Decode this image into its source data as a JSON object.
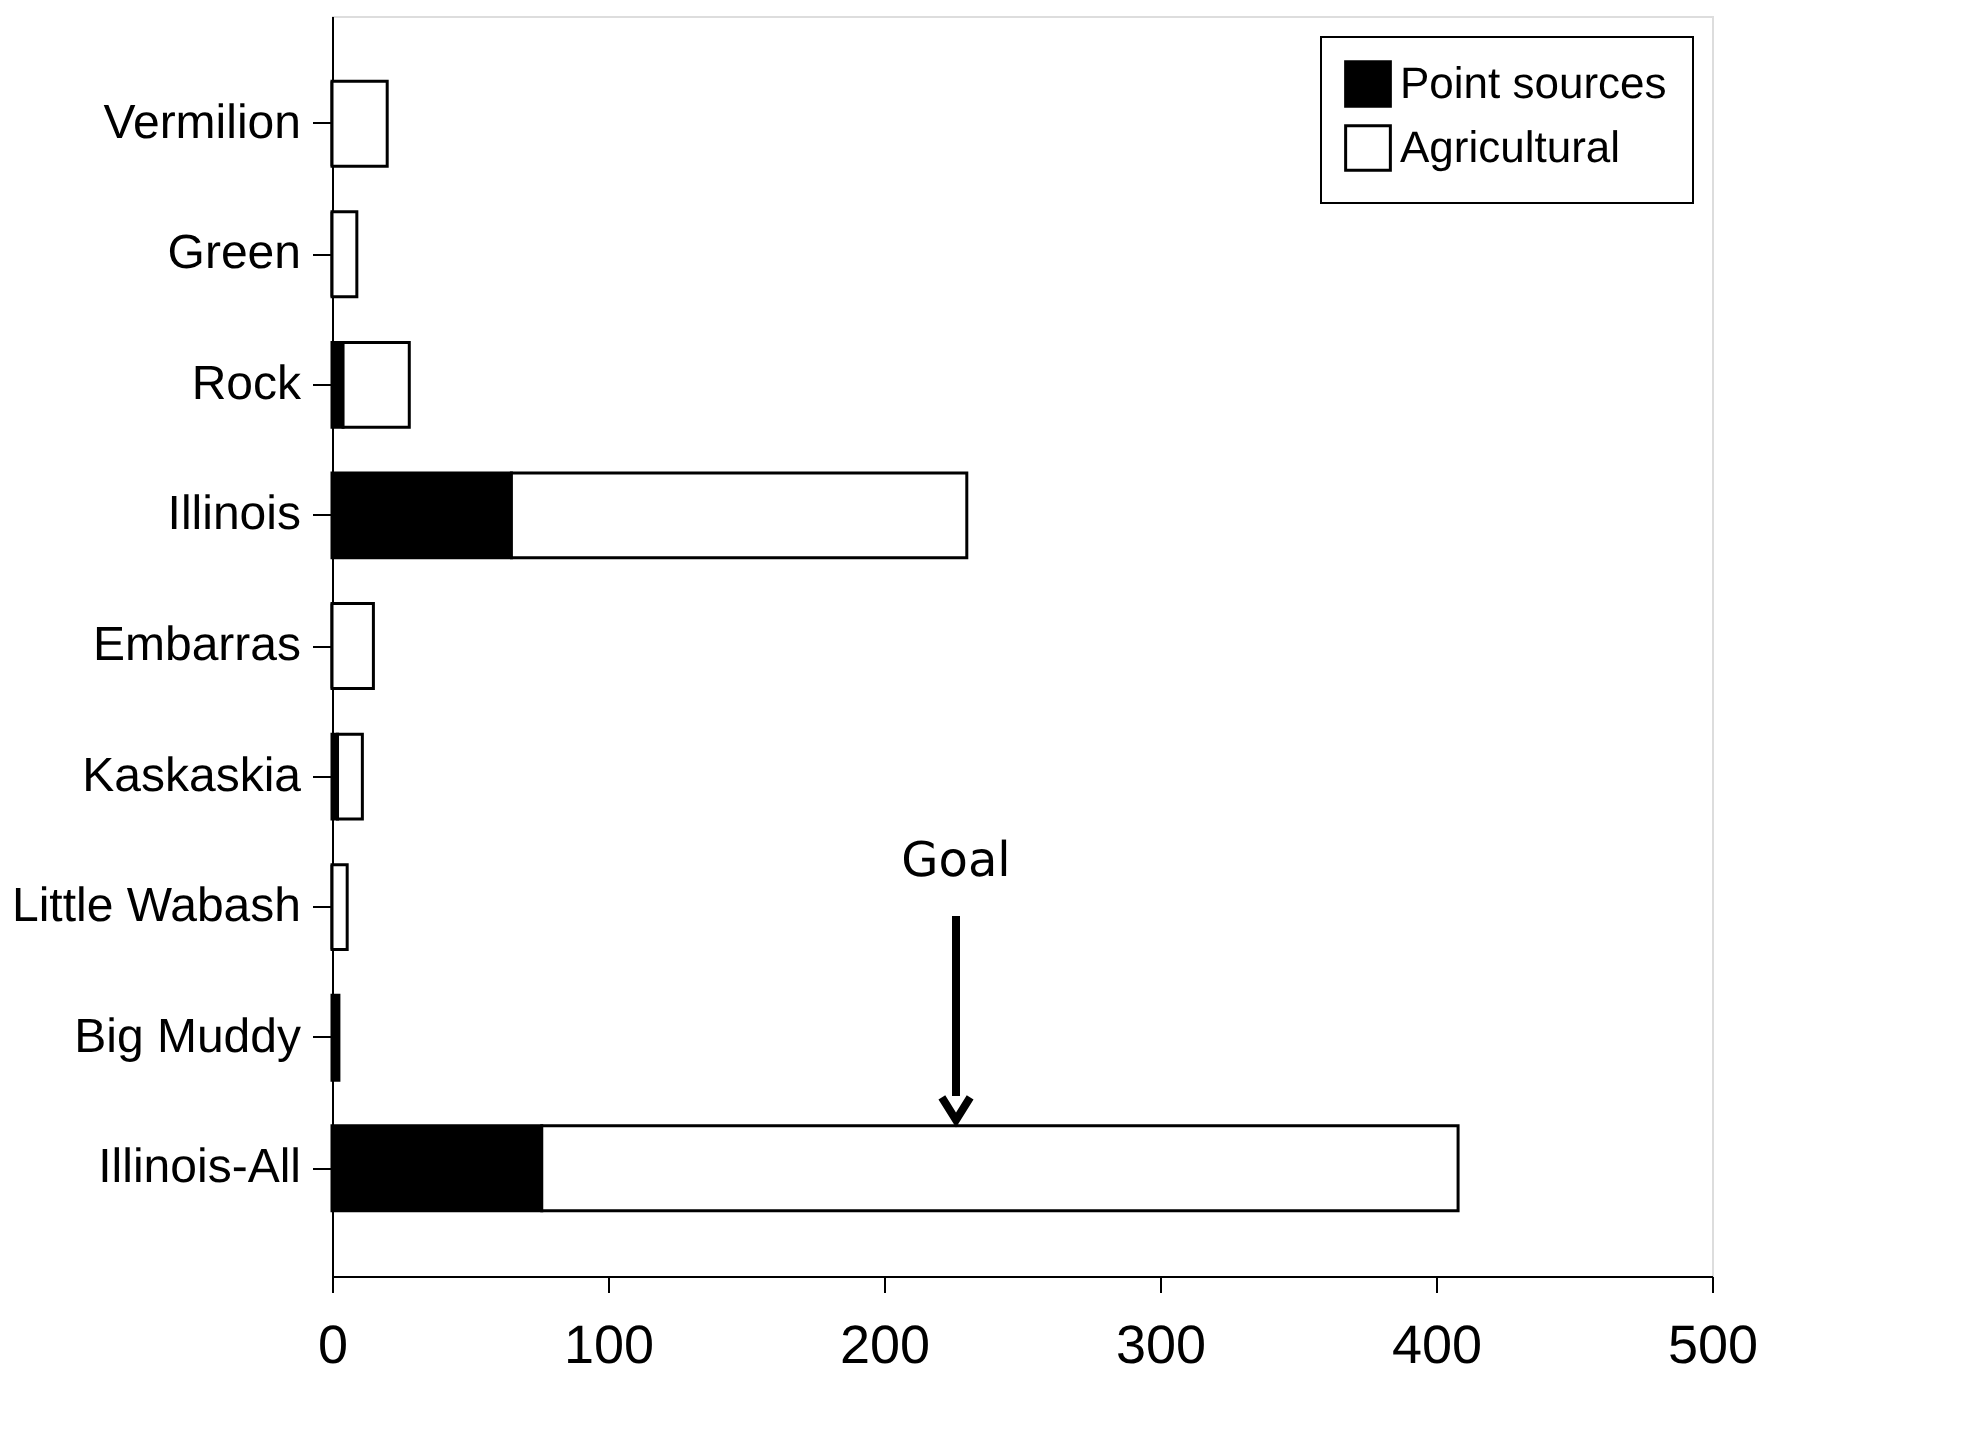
{
  "chart_data": {
    "type": "bar",
    "orientation": "horizontal",
    "stacked": true,
    "categories": [
      "Vermilion",
      "Green",
      "Rock",
      "Illinois",
      "Embarras",
      "Kaskaskia",
      "Little Wabash",
      "Big Muddy",
      "Illinois-All"
    ],
    "series": [
      {
        "name": "Point sources",
        "color": "#000000",
        "values": [
          0,
          0,
          4,
          65,
          0,
          2,
          0,
          2.5,
          76
        ]
      },
      {
        "name": "Agricultural",
        "color": "#ffffff",
        "values": [
          20,
          9,
          24,
          165,
          15,
          9,
          5.5,
          null,
          332
        ]
      }
    ],
    "xlim": [
      0,
      500
    ],
    "xticks": [
      0,
      100,
      200,
      300,
      400,
      500
    ],
    "grid": false,
    "legend": "top right",
    "annotations": [
      "Goal"
    ]
  }
}
